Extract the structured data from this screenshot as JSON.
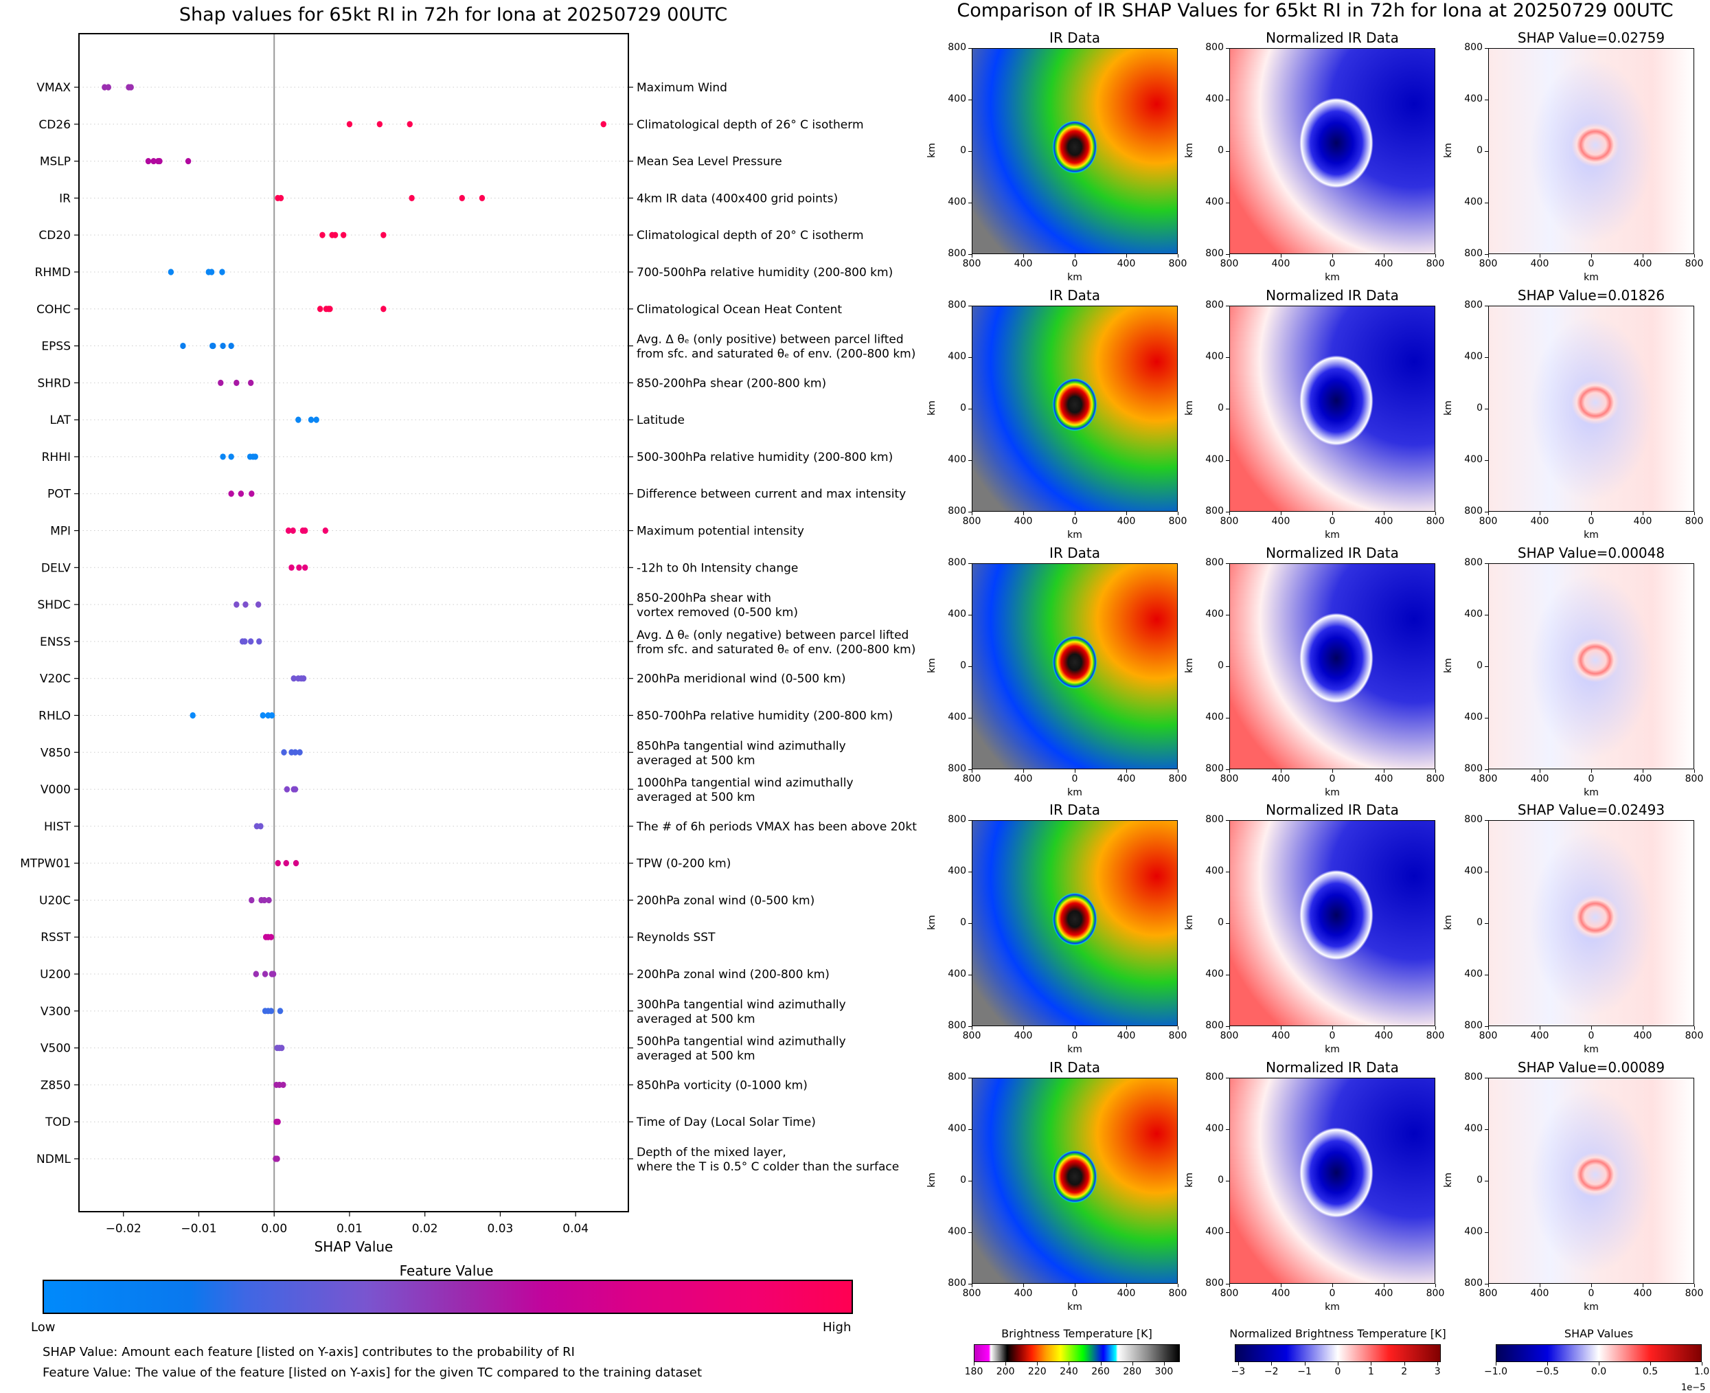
{
  "left_title": "Shap values for 65kt RI in 72h for Iona at 20250729 00UTC",
  "right_title": "Comparison of IR SHAP Values for 65kt RI in 72h for Iona at 20250729 00UTC",
  "feature_value_colorbar": {
    "title": "Feature Value",
    "low_label": "Low",
    "high_label": "High",
    "colors": [
      "#008afb",
      "#7a55cf",
      "#c2039c",
      "#ff0052"
    ]
  },
  "notes": {
    "shap": "SHAP Value: Amount each feature [listed on Y-axis] contributes to the probability of RI",
    "feature": "Feature Value: The value of the feature [listed on Y-axis] for the given TC compared to the training dataset"
  },
  "chart_data": [
    {
      "type": "scatter",
      "title": "Shap values for 65kt RI in 72h for Iona at 20250729 00UTC",
      "xlabel": "SHAP Value",
      "ylabel": "",
      "xlim": [
        -0.0259,
        0.047
      ],
      "xticks": [
        -0.02,
        -0.01,
        0.0,
        0.01,
        0.02,
        0.03,
        0.04
      ],
      "xtick_labels": [
        "−0.02",
        "−0.01",
        "0.00",
        "0.01",
        "0.02",
        "0.03",
        "0.04"
      ],
      "grid": "horizontal dotted per feature",
      "zero_line": 0.0,
      "features": [
        {
          "code": "VMAX",
          "desc": [
            "Maximum Wind"
          ],
          "color": "#9b2fb0",
          "values": [
            -0.0225,
            -0.022,
            -0.0193,
            -0.019
          ]
        },
        {
          "code": "CD26",
          "desc": [
            "Climatological depth of 26° C isotherm"
          ],
          "color": "#ff0052",
          "values": [
            0.01,
            0.014,
            0.018,
            0.0437
          ]
        },
        {
          "code": "MSLP",
          "desc": [
            "Mean Sea Level Pressure"
          ],
          "color": "#b1089f",
          "values": [
            -0.0167,
            -0.016,
            -0.0154,
            -0.0152,
            -0.0114
          ]
        },
        {
          "code": "IR",
          "desc": [
            "4km IR data (400x400 grid points)"
          ],
          "color": "#ff0052",
          "values": [
            0.00048,
            0.00089,
            0.01826,
            0.02493,
            0.02759
          ]
        },
        {
          "code": "CD20",
          "desc": [
            "Climatological depth of 20° C isotherm"
          ],
          "color": "#ff0052",
          "values": [
            0.0064,
            0.0077,
            0.0081,
            0.0092,
            0.0145
          ]
        },
        {
          "code": "RHMD",
          "desc": [
            "700-500hPa relative humidity (200-800 km)"
          ],
          "color": "#0a86f5",
          "values": [
            -0.0137,
            -0.0087,
            -0.0083,
            -0.0069
          ]
        },
        {
          "code": "COHC",
          "desc": [
            "Climatological Ocean Heat Content"
          ],
          "color": "#ff0052",
          "values": [
            0.0061,
            0.0069,
            0.0072,
            0.0074,
            0.0145
          ]
        },
        {
          "code": "EPSS",
          "desc": [
            "Avg. Δ θₑ (only positive) between parcel lifted",
            "from sfc. and saturated θₑ of env. (200-800 km)"
          ],
          "color": "#0a7eef",
          "values": [
            -0.0121,
            -0.0082,
            -0.0081,
            -0.0068,
            -0.0057
          ]
        },
        {
          "code": "SHRD",
          "desc": [
            "850-200hPa shear (200-800 km)"
          ],
          "color": "#a818a5",
          "values": [
            -0.0071,
            -0.005,
            -0.0031
          ]
        },
        {
          "code": "LAT",
          "desc": [
            "Latitude"
          ],
          "color": "#0a86f5",
          "values": [
            0.0032,
            0.0049,
            0.0056
          ]
        },
        {
          "code": "RHHI",
          "desc": [
            "500-300hPa relative humidity (200-800 km)"
          ],
          "color": "#0a86f5",
          "values": [
            -0.0068,
            -0.0057,
            -0.0032,
            -0.0028,
            -0.0025
          ]
        },
        {
          "code": "POT",
          "desc": [
            "Difference between current and max intensity"
          ],
          "color": "#b80da2",
          "values": [
            -0.0057,
            -0.0044,
            -0.003
          ]
        },
        {
          "code": "MPI",
          "desc": [
            "Maximum potential intensity"
          ],
          "color": "#f5006f",
          "values": [
            0.0019,
            0.0025,
            0.0038,
            0.0041,
            0.0068
          ]
        },
        {
          "code": "DELV",
          "desc": [
            "-12h to 0h Intensity change"
          ],
          "color": "#e80080",
          "values": [
            0.0023,
            0.0033,
            0.0041
          ]
        },
        {
          "code": "SHDC",
          "desc": [
            "850-200hPa shear with",
            "vortex removed (0-500 km)"
          ],
          "color": "#7d51cd",
          "values": [
            -0.005,
            -0.0038,
            -0.0021
          ]
        },
        {
          "code": "ENSS",
          "desc": [
            "Avg. Δ θₑ (only negative) between parcel lifted",
            "from sfc. and saturated θₑ of env. (200-800 km)"
          ],
          "color": "#6a59d8",
          "values": [
            -0.0042,
            -0.0039,
            -0.0031,
            -0.002
          ]
        },
        {
          "code": "V20C",
          "desc": [
            "200hPa meridional wind (0-500 km)"
          ],
          "color": "#7257d4",
          "values": [
            0.0026,
            0.0032,
            0.0036,
            0.0039
          ]
        },
        {
          "code": "RHLO",
          "desc": [
            "850-700hPa relative humidity (200-800 km)"
          ],
          "color": "#0a8afb",
          "values": [
            -0.0108,
            -0.0015,
            -0.0008,
            -0.0003
          ]
        },
        {
          "code": "V850",
          "desc": [
            "850hPa tangential wind azimuthally",
            "averaged at 500 km"
          ],
          "color": "#4a64e2",
          "values": [
            0.0013,
            0.0023,
            0.0028,
            0.0034
          ]
        },
        {
          "code": "V000",
          "desc": [
            "1000hPa tangential wind azimuthally",
            "averaged at 500 km"
          ],
          "color": "#8147cb",
          "values": [
            0.0017,
            0.0026,
            0.0028
          ]
        },
        {
          "code": "HIST",
          "desc": [
            "The # of 6h periods VMAX has been above 20kt"
          ],
          "color": "#7257d4",
          "values": [
            -0.0023,
            -0.0018
          ]
        },
        {
          "code": "MTPW01",
          "desc": [
            "TPW (0-200 km)"
          ],
          "color": "#d80088",
          "values": [
            0.0005,
            0.0016,
            0.0029
          ]
        },
        {
          "code": "U20C",
          "desc": [
            "200hPa zonal wind (0-500 km)"
          ],
          "color": "#9a30b4",
          "values": [
            -0.003,
            -0.0017,
            -0.0013,
            -0.0007
          ]
        },
        {
          "code": "RSST",
          "desc": [
            "Reynolds SST"
          ],
          "color": "#c8049a",
          "values": [
            -0.0011,
            -0.0008,
            -0.0004
          ]
        },
        {
          "code": "U200",
          "desc": [
            "200hPa zonal wind (200-800 km)"
          ],
          "color": "#9a30b4",
          "values": [
            -0.0024,
            -0.0012,
            -0.0003,
            -0.0001
          ]
        },
        {
          "code": "V300",
          "desc": [
            "300hPa tangential wind azimuthally",
            "averaged at 500 km"
          ],
          "color": "#3d6ce6",
          "values": [
            -0.0012,
            -0.0008,
            -0.0004,
            0.0008
          ]
        },
        {
          "code": "V500",
          "desc": [
            "500hPa tangential wind azimuthally",
            "averaged at 500 km"
          ],
          "color": "#7a55cf",
          "values": [
            0.0004,
            0.0007,
            0.001
          ]
        },
        {
          "code": "Z850",
          "desc": [
            "850hPa vorticity (0-1000 km)"
          ],
          "color": "#a521a8",
          "values": [
            0.0003,
            0.0007,
            0.0012
          ]
        },
        {
          "code": "TOD",
          "desc": [
            "Time of Day (Local Solar Time)"
          ],
          "color": "#b80da2",
          "values": [
            0.0003,
            0.0005
          ]
        },
        {
          "code": "NDML",
          "desc": [
            "Depth of the mixed layer,",
            "where the T is 0.5° C colder than the surface"
          ],
          "color": "#a521a8",
          "values": [
            0.0002,
            0.0004
          ]
        }
      ]
    },
    {
      "type": "heatmap",
      "title": "Comparison of IR SHAP Values for 65kt RI in 72h for Iona at 20250729 00UTC",
      "panel_titles": [
        "IR Data",
        "Normalized IR Data"
      ],
      "shap_panel_prefix": "SHAP Value=",
      "shap_values": [
        "0.02759",
        "0.01826",
        "0.00048",
        "0.02493",
        "0.00089"
      ],
      "axis_ticks": [
        "800",
        "400",
        "0",
        "400",
        "800"
      ],
      "xlabel": "km",
      "ylabel": "km",
      "colorbars": [
        {
          "title": "Brightness Temperature [K]",
          "range": [
            180,
            310
          ],
          "ticks": [
            "180",
            "200",
            "220",
            "240",
            "260",
            "280",
            "300"
          ]
        },
        {
          "title": "Normalized Brightness Temperature [K]",
          "range": [
            -3.1,
            3.1
          ],
          "ticks": [
            "−3",
            "−2",
            "−1",
            "0",
            "1",
            "2",
            "3"
          ]
        },
        {
          "title": "SHAP Values",
          "range": [
            -1.0,
            1.0
          ],
          "ticks": [
            "−1.0",
            "−0.5",
            "0.0",
            "0.5",
            "1.0"
          ],
          "multiplier": "1e−5"
        }
      ]
    }
  ]
}
